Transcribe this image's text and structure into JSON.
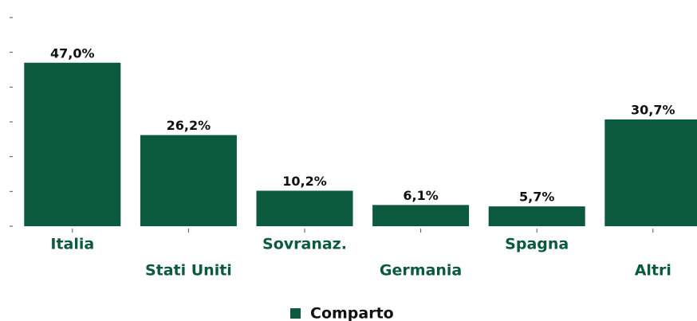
{
  "chart_data": {
    "type": "bar",
    "categories": [
      "Italia",
      "Stati Uniti",
      "Sovranaz.",
      "Germania",
      "Spagna",
      "Altri"
    ],
    "series": [
      {
        "name": "Comparto",
        "color": "#0b5a3e",
        "values": [
          47.0,
          26.2,
          10.2,
          6.1,
          5.7,
          30.7
        ],
        "value_labels": [
          "47,0%",
          "26,2%",
          "10,2%",
          "6,1%",
          "5,7%",
          "30,7%"
        ]
      }
    ],
    "ylim": [
      0,
      60
    ],
    "yticks": [
      0,
      10,
      20,
      30,
      40,
      50,
      60
    ],
    "legend": "bottom"
  }
}
